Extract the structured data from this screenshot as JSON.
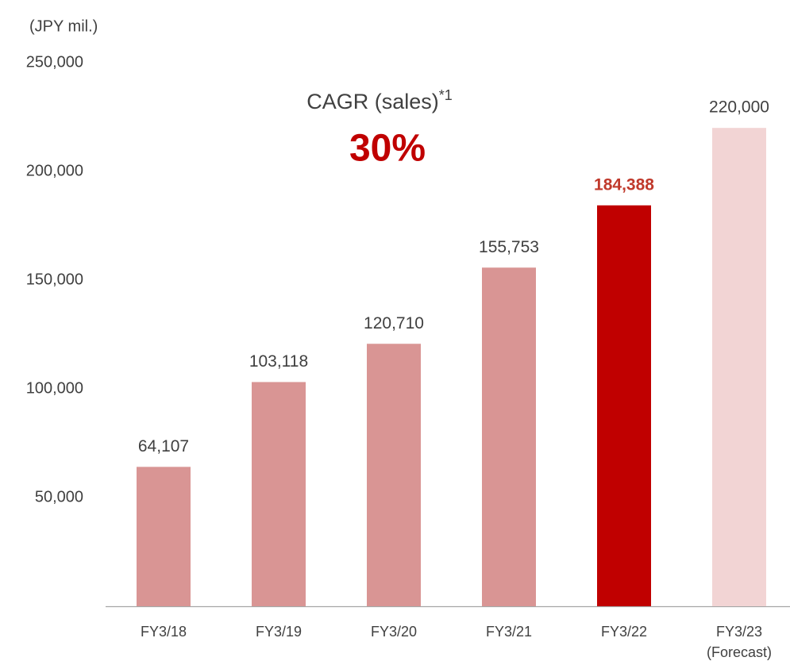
{
  "chart_data": {
    "type": "bar",
    "unit_label": "(JPY mil.)",
    "annotation": {
      "label": "CAGR (sales)",
      "note": "*1",
      "value_label": "30%",
      "color": "#c00000"
    },
    "categories": [
      "FY3/18",
      "FY3/19",
      "FY3/20",
      "FY3/21",
      "FY3/22",
      "FY3/23\n(Forecast)"
    ],
    "values": [
      64107,
      103118,
      120710,
      155753,
      184388,
      220000
    ],
    "value_labels": [
      "64,107",
      "103,118",
      "120,710",
      "155,753",
      "184,388",
      "220,000"
    ],
    "colors": [
      "#d99594",
      "#d99594",
      "#d99594",
      "#d99594",
      "#c00000",
      "#f2d4d4"
    ],
    "value_label_colors": [
      "#404040",
      "#404040",
      "#404040",
      "#404040",
      "#c0392b",
      "#404040"
    ],
    "ylim": [
      0,
      250000
    ],
    "yticks": [
      {
        "value": 50000,
        "label": "50,000"
      },
      {
        "value": 100000,
        "label": "100,000"
      },
      {
        "value": 150000,
        "label": "150,000"
      },
      {
        "value": 200000,
        "label": "200,000"
      },
      {
        "value": 250000,
        "label": "250,000"
      }
    ],
    "grid": false
  }
}
